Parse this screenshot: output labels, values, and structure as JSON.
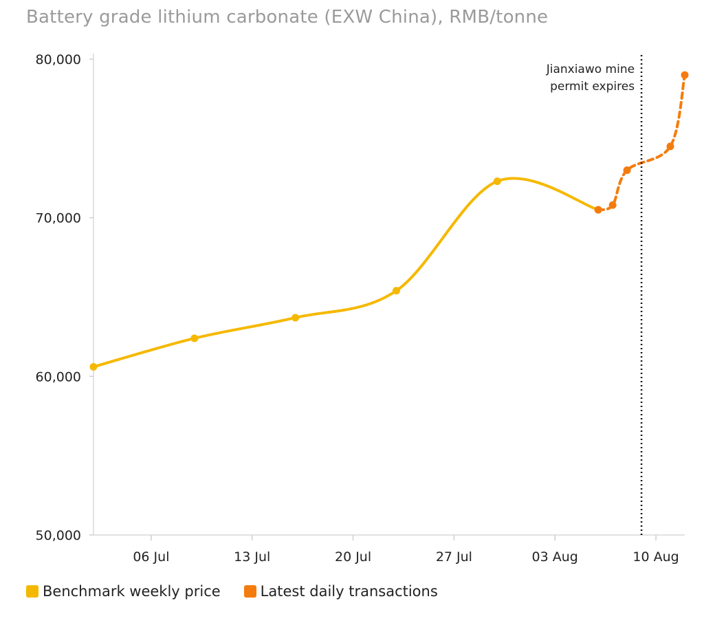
{
  "chart_data": {
    "type": "line",
    "title": "Battery grade lithium carbonate (EXW China), RMB/tonne",
    "ylim": [
      50000,
      80000
    ],
    "yticks": [
      50000,
      60000,
      70000,
      80000
    ],
    "ytick_labels": [
      "50,000",
      "60,000",
      "70,000",
      "80,000"
    ],
    "xlim": [
      "2020-07-02",
      "2020-08-12"
    ],
    "xticks": [
      "2020-07-06",
      "2020-07-13",
      "2020-07-20",
      "2020-07-27",
      "2020-08-03",
      "2020-08-10"
    ],
    "xtick_labels": [
      "06 Jul",
      "13 Jul",
      "20 Jul",
      "27 Jul",
      "03 Aug",
      "10 Aug"
    ],
    "grid": false,
    "legend_position": "bottom-left",
    "series": [
      {
        "name": "Benchmark weekly price",
        "color": "#f5b800",
        "style": "solid-smooth",
        "points": [
          {
            "x": "2020-07-02",
            "y": 60600
          },
          {
            "x": "2020-07-09",
            "y": 62400
          },
          {
            "x": "2020-07-16",
            "y": 63700
          },
          {
            "x": "2020-07-23",
            "y": 65400
          },
          {
            "x": "2020-07-30",
            "y": 72300
          },
          {
            "x": "2020-08-06",
            "y": 70500
          }
        ]
      },
      {
        "name": "Latest daily transactions",
        "color": "#f47c0e",
        "style": "dashed",
        "points": [
          {
            "x": "2020-08-06",
            "y": 70500
          },
          {
            "x": "2020-08-07",
            "y": 70800
          },
          {
            "x": "2020-08-08",
            "y": 73000
          },
          {
            "x": "2020-08-11",
            "y": 74500
          },
          {
            "x": "2020-08-12",
            "y": 79000
          }
        ]
      }
    ],
    "annotations": [
      {
        "type": "vertical-line",
        "x": "2020-08-09",
        "style": "dotted",
        "lines": [
          "Jianxiawo mine",
          "permit expires"
        ]
      }
    ]
  }
}
